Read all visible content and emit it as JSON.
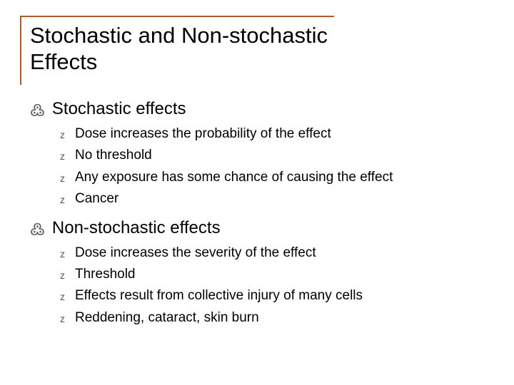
{
  "title": "Stochastic and\nNon-stochastic Effects",
  "colors": {
    "rule": "#b05a2a",
    "bullet_main": "#666666",
    "bullet_sub": "#555555",
    "text": "#000000",
    "background": "#ffffff"
  },
  "typography": {
    "title_fontsize": 31,
    "section_fontsize": 24,
    "item_fontsize": 19,
    "font_family": "Arial"
  },
  "bullets": {
    "main": "߷",
    "sub": "z"
  },
  "sections": [
    {
      "heading": "Stochastic effects",
      "items": [
        "Dose increases the probability of the effect",
        "No threshold",
        "Any exposure has some chance of causing the effect",
        "Cancer"
      ]
    },
    {
      "heading": "Non-stochastic effects",
      "items": [
        "Dose increases the severity of the effect",
        "Threshold",
        "Effects result from collective injury of many cells",
        "Reddening, cataract, skin burn"
      ]
    }
  ]
}
